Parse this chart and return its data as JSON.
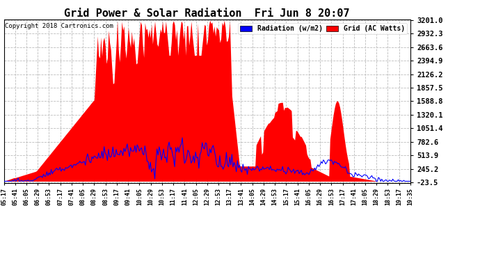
{
  "title": "Grid Power & Solar Radiation  Fri Jun 8 20:07",
  "copyright": "Copyright 2018 Cartronics.com",
  "legend_labels": [
    "Radiation (w/m2)",
    "Grid (AC Watts)"
  ],
  "legend_colors": [
    "blue",
    "red"
  ],
  "yticks": [
    3201.0,
    2932.3,
    2663.6,
    2394.9,
    2126.2,
    1857.5,
    1588.8,
    1320.1,
    1051.4,
    782.6,
    513.9,
    245.2,
    -23.5
  ],
  "ymin": -23.5,
  "ymax": 3201.0,
  "background_color": "#ffffff",
  "grid_color": "#bbbbbb",
  "fill_color": "red",
  "line_color": "blue",
  "n_points": 370,
  "xtick_labels": [
    "05:17",
    "05:41",
    "06:05",
    "06:29",
    "06:53",
    "07:17",
    "07:41",
    "08:05",
    "08:29",
    "08:53",
    "09:17",
    "09:41",
    "10:05",
    "10:29",
    "10:53",
    "11:17",
    "11:41",
    "12:05",
    "12:29",
    "12:53",
    "13:17",
    "13:41",
    "14:05",
    "14:29",
    "14:53",
    "15:17",
    "15:41",
    "16:05",
    "16:29",
    "16:53",
    "17:17",
    "17:41",
    "18:05",
    "18:29",
    "18:53",
    "19:17",
    "19:35"
  ]
}
